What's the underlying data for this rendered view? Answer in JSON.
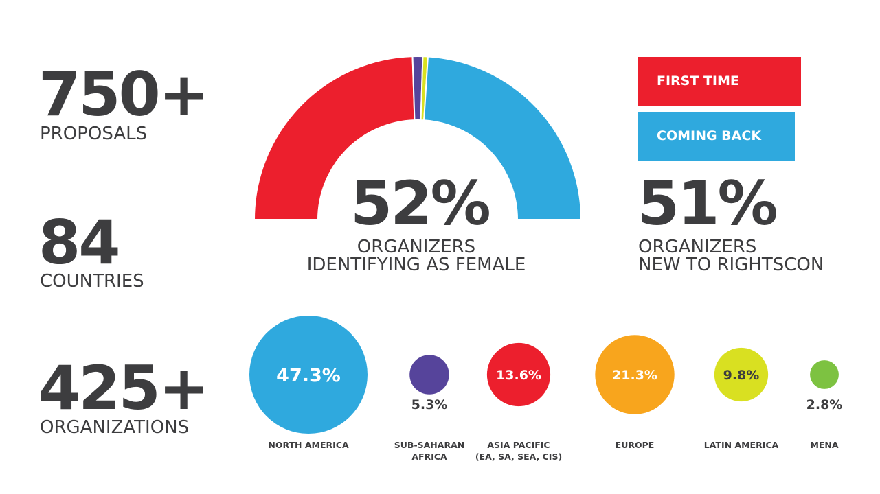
{
  "stats": [
    {
      "value": "750+",
      "label": "PROPOSALS"
    },
    {
      "value": "84",
      "label": "COUNTRIES"
    },
    {
      "value": "425+",
      "label": "ORGANIZATIONS"
    }
  ],
  "female": {
    "value": "52%",
    "line1": "ORGANIZERS",
    "line2": "IDENTIFYING AS FEMALE"
  },
  "new": {
    "value": "51%",
    "line1": "ORGANIZERS",
    "line2": "NEW TO RIGHTSCON"
  },
  "legend": {
    "first_time": "FIRST TIME",
    "coming_back": "COMING BACK"
  },
  "colors": {
    "red": "#ec1f2d",
    "blue": "#2fa9de",
    "purple": "#56449b",
    "yellow": "#d9e021",
    "orange": "#f8a51d",
    "green": "#7dc241",
    "text": "#3d3d3f"
  },
  "chart_data": [
    {
      "type": "pie",
      "variant": "half-donut",
      "slices": [
        {
          "label": "FIRST TIME",
          "value": 49,
          "color": "#ec1f2d"
        },
        {
          "label": "",
          "value": 2,
          "color": "#56449b"
        },
        {
          "label": "",
          "value": 1,
          "color": "#d9e021"
        },
        {
          "label": "COMING BACK",
          "value": 48,
          "color": "#2fa9de"
        }
      ]
    },
    {
      "type": "scatter",
      "variant": "proportional-bubbles",
      "series": [
        {
          "category": "NORTH AMERICA",
          "value": 47.3,
          "label": "47.3%",
          "color": "#2fa9de"
        },
        {
          "category": "SUB-SAHARAN\nAFRICA",
          "value": 5.3,
          "label": "5.3%",
          "color": "#56449b"
        },
        {
          "category": "ASIA PACIFIC\n(EA, SA, SEA, CIS)",
          "value": 13.6,
          "label": "13.6%",
          "color": "#ec1f2d"
        },
        {
          "category": "EUROPE",
          "value": 21.3,
          "label": "21.3%",
          "color": "#f8a51d"
        },
        {
          "category": "LATIN AMERICA",
          "value": 9.8,
          "label": "9.8%",
          "color": "#d9e021"
        },
        {
          "category": "MENA",
          "value": 2.8,
          "label": "2.8%",
          "color": "#7dc241"
        }
      ]
    }
  ]
}
